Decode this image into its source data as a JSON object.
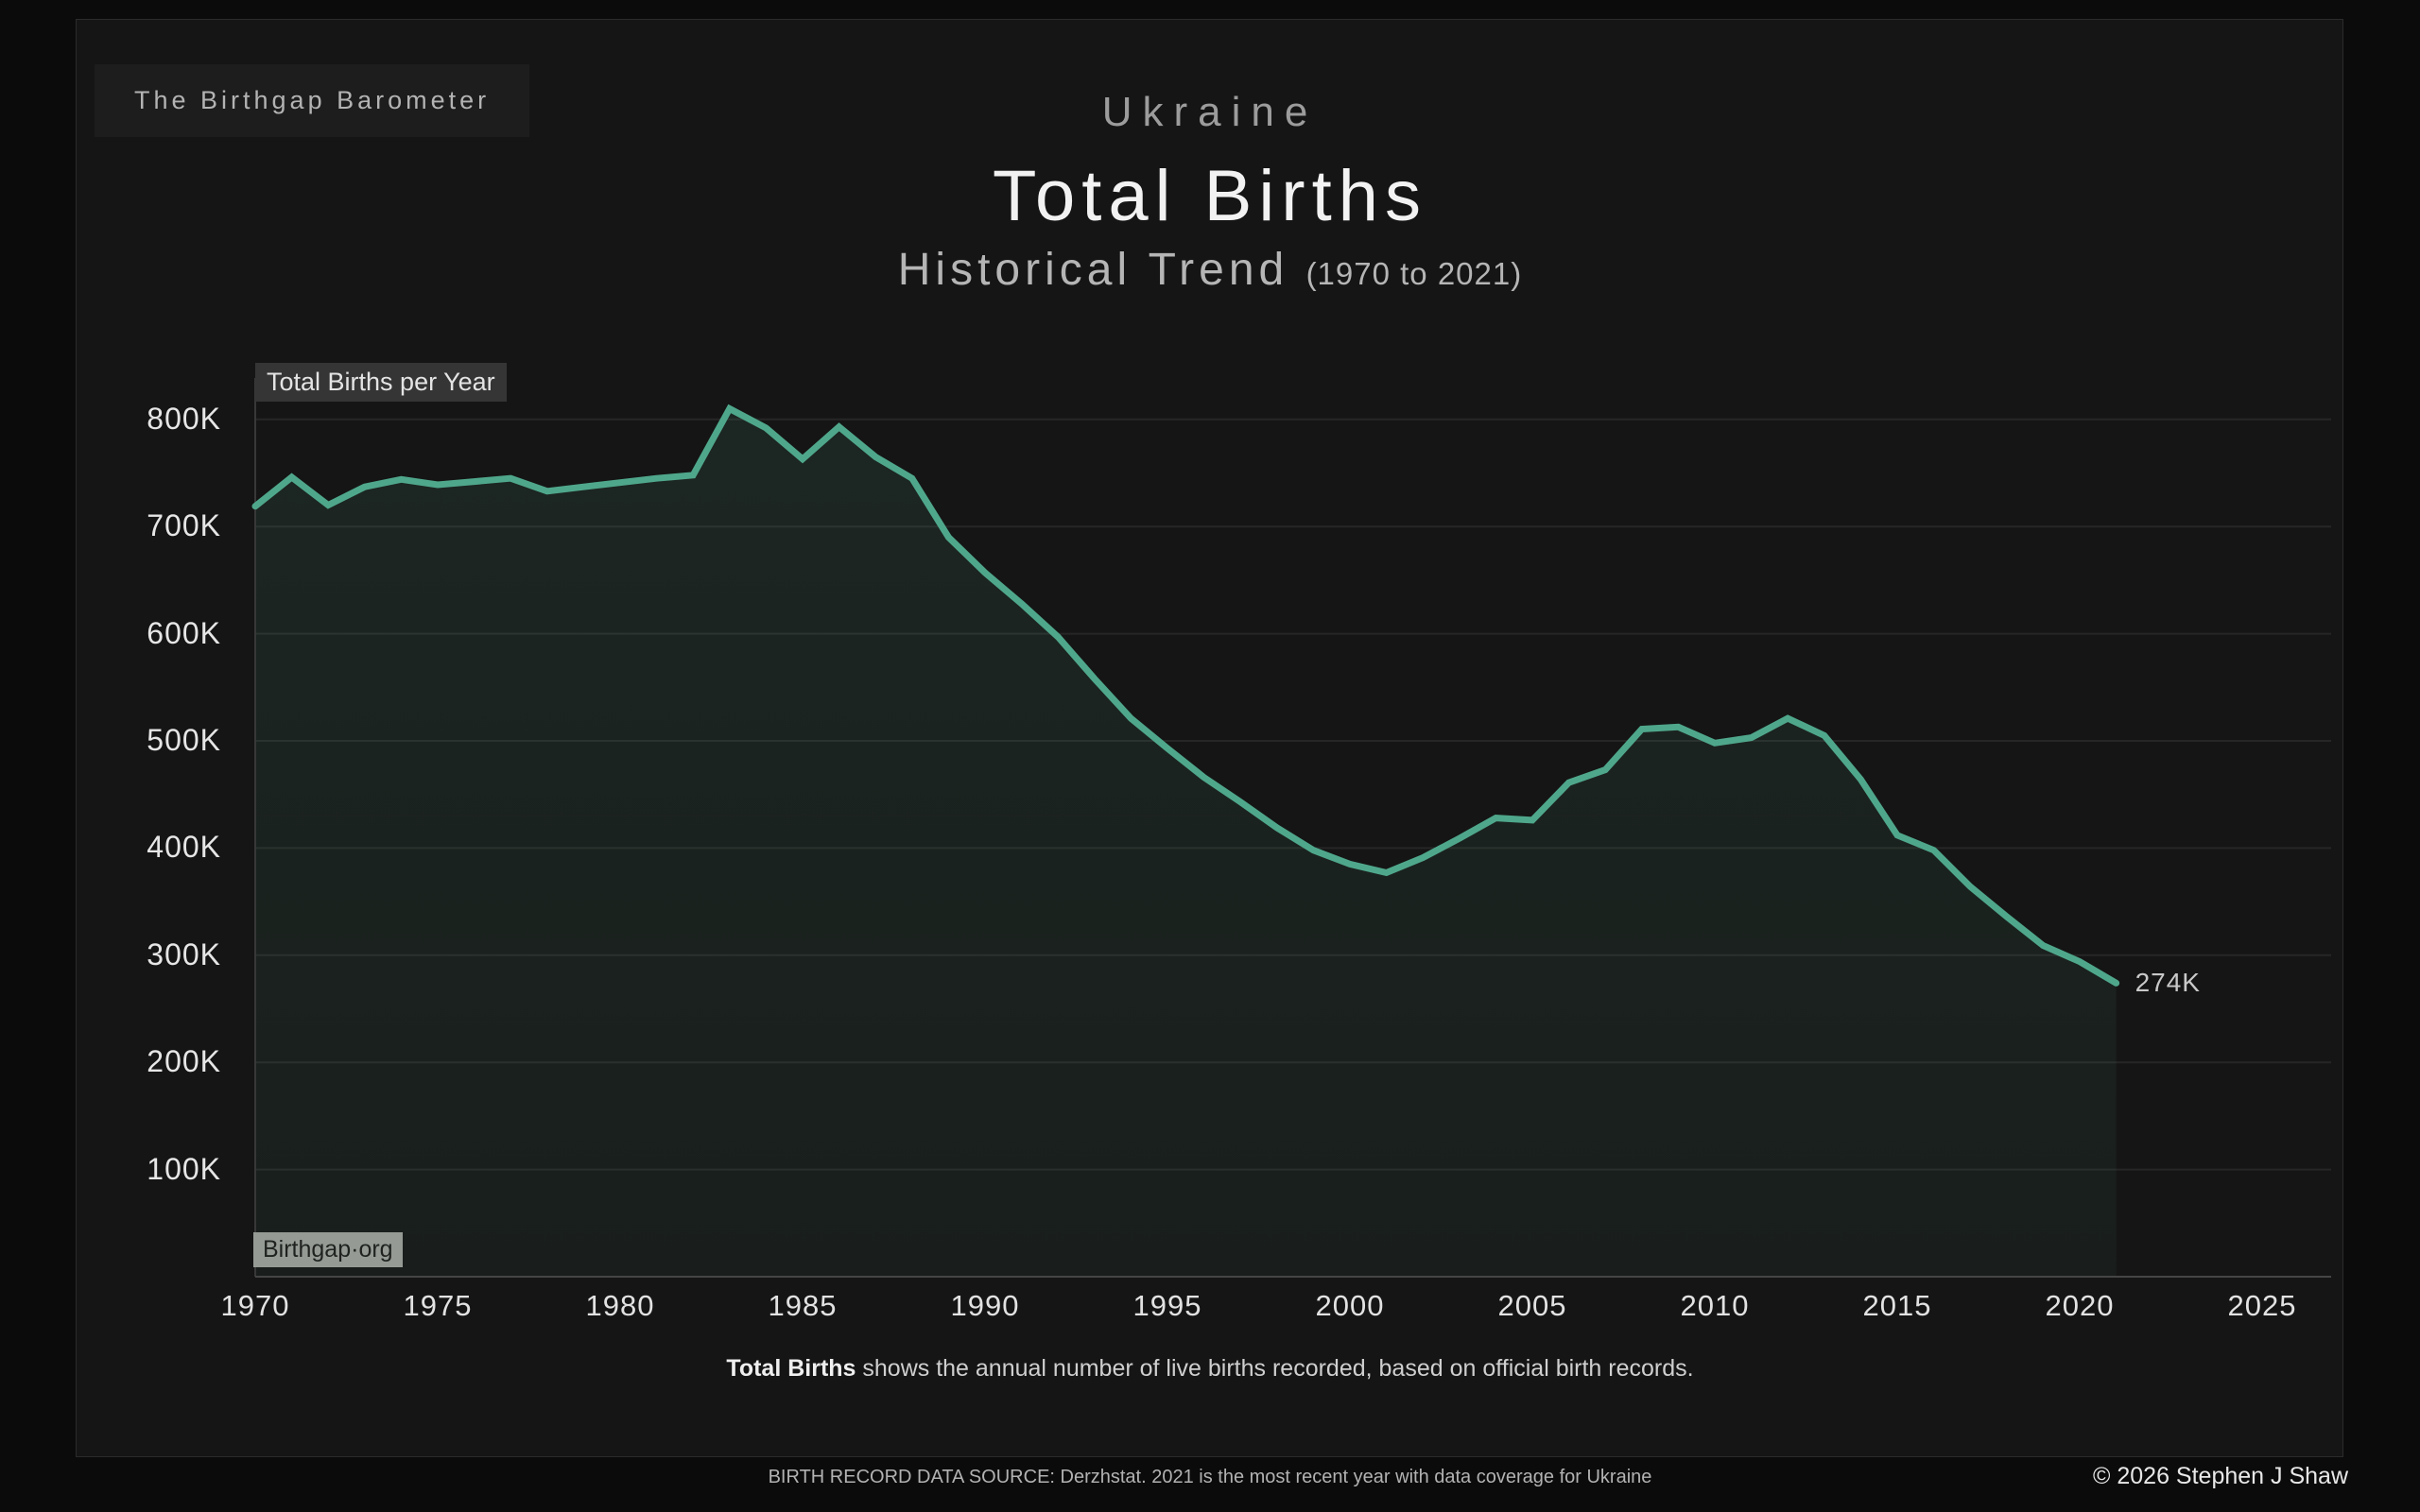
{
  "page": {
    "brand": "The Birthgap Barometer",
    "country": "Ukraine",
    "metric": "Total Births",
    "subtitle": "Historical Trend",
    "subtitle_range": "(1970 to 2021)",
    "chart_label": "Total Births per Year",
    "watermark": "Birthgap·org",
    "end_annotation": "274K",
    "caption_bold": "Total Births",
    "caption_rest": " shows the annual number of live births recorded, based on official birth records.",
    "footer_source": "BIRTH RECORD DATA SOURCE: Derzhstat. 2021 is the most recent year with data coverage for Ukraine",
    "copyright": "© 2026 Stephen J Shaw"
  },
  "colors": {
    "page_bg": "#0b0b0b",
    "card_bg": "#151515",
    "card_border": "#2b2b2b",
    "line": "#4fa78b",
    "area_fill": "rgba(86,178,140,0.08)",
    "gridline": "#262626",
    "x_axis_line": "#454545",
    "y_axis_line": "#383838"
  },
  "chart_data": {
    "type": "line",
    "title": "Ukraine Total Births — Historical Trend (1970 to 2021)",
    "series_name": "Total Births per Year",
    "unit": "thousands of live births",
    "x": [
      1970,
      1971,
      1972,
      1973,
      1974,
      1975,
      1976,
      1977,
      1978,
      1979,
      1980,
      1981,
      1982,
      1983,
      1984,
      1985,
      1986,
      1987,
      1988,
      1989,
      1990,
      1991,
      1992,
      1993,
      1994,
      1995,
      1996,
      1997,
      1998,
      1999,
      2000,
      2001,
      2002,
      2003,
      2004,
      2005,
      2006,
      2007,
      2008,
      2009,
      2010,
      2011,
      2012,
      2013,
      2014,
      2015,
      2016,
      2017,
      2018,
      2019,
      2020,
      2021
    ],
    "values": [
      719,
      746,
      720,
      737,
      744,
      739,
      742,
      745,
      733,
      737,
      741,
      745,
      748,
      810,
      792,
      763,
      793,
      765,
      745,
      690,
      657,
      628,
      597,
      558,
      521,
      493,
      466,
      443,
      419,
      398,
      385,
      377,
      391,
      409,
      428,
      426,
      461,
      473,
      511,
      513,
      498,
      503,
      521,
      505,
      464,
      412,
      398,
      364,
      336,
      309,
      294,
      274
    ],
    "end_label": "274K",
    "y_ticks": [
      {
        "value": 100,
        "label": "100K"
      },
      {
        "value": 200,
        "label": "200K"
      },
      {
        "value": 300,
        "label": "300K"
      },
      {
        "value": 400,
        "label": "400K"
      },
      {
        "value": 500,
        "label": "500K"
      },
      {
        "value": 600,
        "label": "600K"
      },
      {
        "value": 700,
        "label": "700K"
      },
      {
        "value": 800,
        "label": "800K"
      }
    ],
    "x_ticks": [
      {
        "value": 1970,
        "label": "1970"
      },
      {
        "value": 1975,
        "label": "1975"
      },
      {
        "value": 1980,
        "label": "1980"
      },
      {
        "value": 1985,
        "label": "1985"
      },
      {
        "value": 1990,
        "label": "1990"
      },
      {
        "value": 1995,
        "label": "1995"
      },
      {
        "value": 2000,
        "label": "2000"
      },
      {
        "value": 2005,
        "label": "2005"
      },
      {
        "value": 2010,
        "label": "2010"
      },
      {
        "value": 2015,
        "label": "2015"
      },
      {
        "value": 2020,
        "label": "2020"
      },
      {
        "value": 2025,
        "label": "2025"
      }
    ],
    "xlim": [
      1970,
      2026.9
    ],
    "ylim": [
      0,
      840
    ],
    "grid": "horizontal",
    "legend": "none"
  }
}
